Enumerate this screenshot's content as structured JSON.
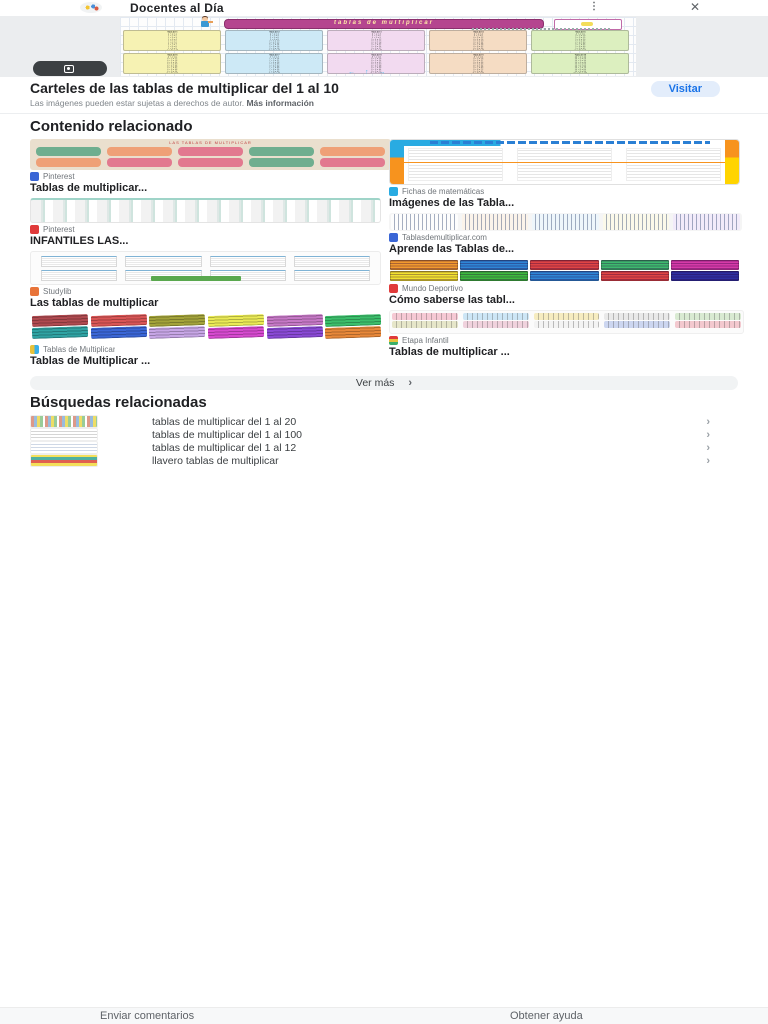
{
  "header": {
    "site_title": "Docentes al Día",
    "more_icon": "⋮",
    "close_icon": "✕"
  },
  "icons": {
    "chevron_right": "›",
    "arrows": "← ↑ →"
  },
  "viewer": {
    "poster": {
      "banner_title": "tablas de multiplicar",
      "panels": [
        {
          "title": "Tabla del 1",
          "rows": "1 × 1 = 1\n1 × 2 = 2\n1 × 3 = 3\n1 × 4 = 4\n1 × 5 = 5\n1 × 6 = 6\n1 × 7 = 7\n1 × 8 = 8\n1 × 9 = 9\n1 × 10 = 10"
        },
        {
          "title": "Tabla del 2",
          "rows": "2 × 1 = 2\n2 × 2 = 4\n2 × 3 = 6\n2 × 4 = 8\n2 × 5 = 10\n2 × 6 = 12\n2 × 7 = 14\n2 × 8 = 16\n2 × 9 = 18\n2 × 10 = 20"
        },
        {
          "title": "Tabla del 3",
          "rows": "3 × 1 = 3\n3 × 2 = 6\n3 × 3 = 9\n3 × 4 = 12\n3 × 5 = 15\n3 × 6 = 18\n3 × 7 = 21\n3 × 8 = 24\n3 × 9 = 27\n3 × 10 = 30"
        },
        {
          "title": "Tabla del 4",
          "rows": "4 × 1 = 4\n4 × 2 = 8\n4 × 3 = 12\n4 × 4 = 16\n4 × 5 = 20\n4 × 6 = 24\n4 × 7 = 28\n4 × 8 = 32\n4 × 9 = 36\n4 × 10 = 40"
        },
        {
          "title": "Tabla del 5",
          "rows": "5 × 1 = 5\n5 × 2 = 10\n5 × 3 = 15\n5 × 4 = 20\n5 × 5 = 25\n5 × 6 = 30\n5 × 7 = 35\n5 × 8 = 40\n5 × 9 = 45\n5 × 10 = 50"
        },
        {
          "title": "Tabla del 6",
          "rows": "6 × 1 = 6\n6 × 2 = 12\n6 × 3 = 18\n6 × 4 = 24\n6 × 5 = 30\n6 × 6 = 36\n6 × 7 = 42\n6 × 8 = 48\n6 × 9 = 54\n6 × 10 = 60"
        },
        {
          "title": "Tabla del 7",
          "rows": "7 × 1 = 7\n7 × 2 = 14\n7 × 3 = 21\n7 × 4 = 28\n7 × 5 = 35\n7 × 6 = 42\n7 × 7 = 49\n7 × 8 = 56\n7 × 9 = 63\n7 × 10 = 70"
        },
        {
          "title": "Tabla del 8",
          "rows": "8 × 1 = 8\n8 × 2 = 16\n8 × 3 = 24\n8 × 4 = 32\n8 × 5 = 40\n8 × 6 = 48\n8 × 7 = 56\n8 × 8 = 64\n8 × 9 = 72\n8 × 10 = 80"
        },
        {
          "title": "Tabla del 9",
          "rows": "9 × 1 = 9\n9 × 2 = 18\n9 × 3 = 27\n9 × 4 = 36\n9 × 5 = 45\n9 × 6 = 54\n9 × 7 = 63\n9 × 8 = 72\n9 × 9 = 81\n9 × 10 = 90"
        },
        {
          "title": "Tabla del 10",
          "rows": "10 × 1 = 10\n10 × 2 = 20\n10 × 3 = 30\n10 × 4 = 40\n10 × 5 = 50\n10 × 6 = 60\n10 × 7 = 70\n10 × 8 = 80\n10 × 9 = 90\n10 × 10 = 100"
        }
      ]
    }
  },
  "result": {
    "title": "Carteles de las tablas de multiplicar del 1 al 10",
    "visit_label": "Visitar",
    "disclaimer": "Las imágenes pueden estar sujetas a derechos de autor.",
    "more_info": "Más información"
  },
  "related": {
    "heading": "Contenido relacionado",
    "see_more": "Ver más",
    "cards": [
      {
        "source": "Pinterest",
        "title": "Tablas de multiplicar..."
      },
      {
        "source": "Pinterest",
        "title": "INFANTILES LAS..."
      },
      {
        "source": "Studylib",
        "title": "Las tablas de multiplicar"
      },
      {
        "source": "Tablas de Multiplicar",
        "title": "Tablas de Multiplicar ..."
      },
      {
        "source": "Fichas de matemáticas",
        "title": "Imágenes de las Tabla..."
      },
      {
        "source": "Tablasdemultiplicar.com",
        "title": "Aprende las Tablas de..."
      },
      {
        "source": "Mundo Deportivo",
        "title": "Cómo saberse las tabl..."
      },
      {
        "source": "Etapa Infantil",
        "title": "Tablas de multiplicar ..."
      }
    ]
  },
  "searches": {
    "heading": "Búsquedas relacionadas",
    "items": [
      "tablas de multiplicar del 1 al 20",
      "tablas de multiplicar del 1 al 100",
      "tablas de multiplicar del 1 al 12",
      "llavero tablas de multiplicar"
    ]
  },
  "footer": {
    "send_feedback": "Enviar comentarios",
    "get_help": "Obtener ayuda"
  }
}
